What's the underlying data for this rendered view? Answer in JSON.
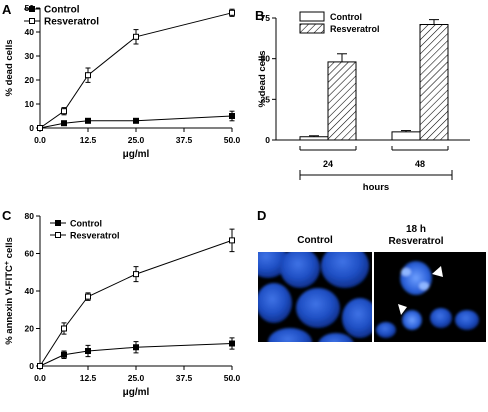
{
  "panels": {
    "A": {
      "letter": "A"
    },
    "B": {
      "letter": "B"
    },
    "C": {
      "letter": "C"
    },
    "D": {
      "letter": "D"
    }
  },
  "chart_data": [
    {
      "id": "A",
      "type": "line",
      "ylabel": "% dead cells",
      "xlabel": "μg/ml",
      "xlim": [
        0,
        50
      ],
      "ylim": [
        0,
        50
      ],
      "xticks": [
        "0.0",
        "12.5",
        "25.0",
        "37.5",
        "50.0"
      ],
      "xtick_values": [
        0,
        12.5,
        25,
        37.5,
        50
      ],
      "yticks": [
        "0",
        "10",
        "20",
        "30",
        "40",
        "50"
      ],
      "ytick_values": [
        0,
        10,
        20,
        30,
        40,
        50
      ],
      "legend_position": "top-left",
      "series": [
        {
          "name": "Control",
          "marker": "filled-square",
          "x": [
            0,
            6.25,
            12.5,
            25,
            50
          ],
          "y": [
            0,
            2,
            3,
            3,
            5
          ],
          "err": [
            0,
            0.6,
            0.6,
            0.6,
            2
          ]
        },
        {
          "name": "Resveratrol",
          "marker": "open-square",
          "x": [
            0,
            6.25,
            12.5,
            25,
            50
          ],
          "y": [
            0,
            7,
            22,
            38,
            48
          ],
          "err": [
            0,
            1.5,
            3,
            3,
            1.5
          ]
        }
      ]
    },
    {
      "id": "B",
      "type": "bar",
      "ylabel": "% dead cells",
      "xlabel": "hours",
      "ylim": [
        0,
        75
      ],
      "yticks": [
        "0",
        "25",
        "50",
        "75"
      ],
      "ytick_values": [
        0,
        25,
        50,
        75
      ],
      "categories": [
        "24",
        "48"
      ],
      "legend_position": "top-left",
      "series": [
        {
          "name": "Control",
          "fill": "open",
          "values": [
            2,
            5
          ],
          "err": [
            0.6,
            0.8
          ]
        },
        {
          "name": "Resveratrol",
          "fill": "hatched",
          "values": [
            48,
            71
          ],
          "err": [
            5,
            3
          ]
        }
      ]
    },
    {
      "id": "C",
      "type": "line",
      "ylabel": "% annexin V-FITC",
      "ylabel_sup": "+",
      "ylabel_suffix": " cells",
      "xlabel": "μg/ml",
      "xlim": [
        0,
        50
      ],
      "ylim": [
        0,
        80
      ],
      "xticks": [
        "0.0",
        "12.5",
        "25.0",
        "37.5",
        "50.0"
      ],
      "xtick_values": [
        0,
        12.5,
        25,
        37.5,
        50
      ],
      "yticks": [
        "0",
        "20",
        "40",
        "60",
        "80"
      ],
      "ytick_values": [
        0,
        20,
        40,
        60,
        80
      ],
      "legend_position": "top-left",
      "series": [
        {
          "name": "Control",
          "marker": "filled-square",
          "x": [
            0,
            6.25,
            12.5,
            25,
            50
          ],
          "y": [
            0,
            6,
            8,
            10,
            12
          ],
          "err": [
            0,
            2,
            3,
            3,
            3
          ]
        },
        {
          "name": "Resveratrol",
          "marker": "open-square",
          "x": [
            0,
            6.25,
            12.5,
            25,
            50
          ],
          "y": [
            0,
            20,
            37,
            49,
            67
          ],
          "err": [
            0,
            3,
            2,
            4,
            6
          ]
        }
      ]
    }
  ],
  "micrographs": {
    "left_title": "Control",
    "right_title_top": "18 h",
    "right_title_bottom": "Resveratrol"
  }
}
